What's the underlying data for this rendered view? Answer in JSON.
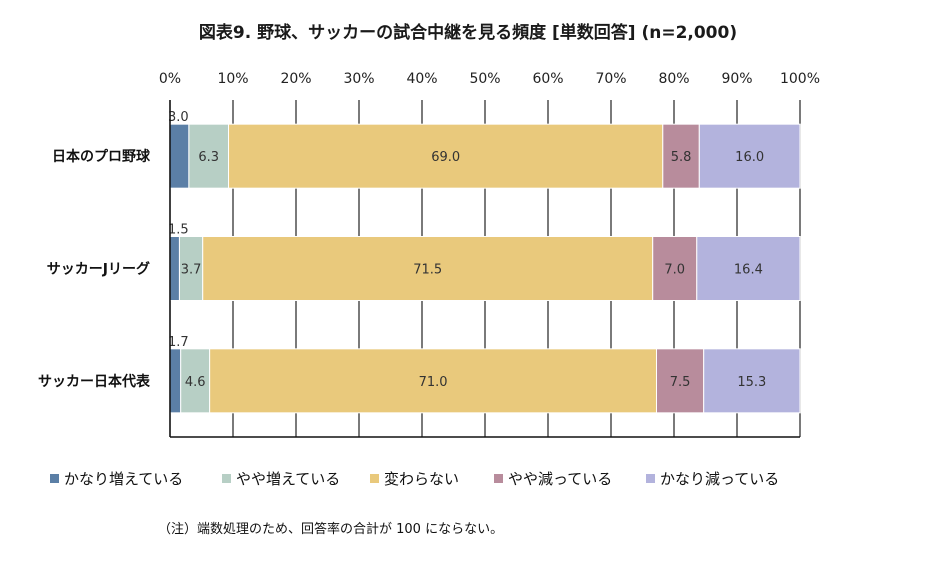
{
  "chart_data": {
    "type": "bar",
    "orientation": "horizontal",
    "stacked": "percent",
    "title": "図表9. 野球、サッカーの試合中継を見る頻度 [単数回答] (n=2,000)",
    "xlim": [
      0,
      100
    ],
    "x_ticks": [
      "0%",
      "10%",
      "20%",
      "30%",
      "40%",
      "50%",
      "60%",
      "70%",
      "80%",
      "90%",
      "100%"
    ],
    "categories": [
      "日本のプロ野球",
      "サッカーJリーグ",
      "サッカー日本代表"
    ],
    "series": [
      {
        "name": "かなり増えている",
        "color": "#5b7fa6",
        "values": [
          3.0,
          1.5,
          1.7
        ],
        "labels": [
          "3.0",
          "1.5",
          "1.7"
        ]
      },
      {
        "name": "やや増えている",
        "color": "#b7cfc5",
        "values": [
          6.3,
          3.7,
          4.6
        ],
        "labels": [
          "6.3",
          "3.7",
          "4.6"
        ]
      },
      {
        "name": "変わらない",
        "color": "#e9c97c",
        "values": [
          69.0,
          71.5,
          71.0
        ],
        "labels": [
          "69.0",
          "71.5",
          "71.0"
        ]
      },
      {
        "name": "やや減っている",
        "color": "#b88c9c",
        "values": [
          5.8,
          7.0,
          7.5
        ],
        "labels": [
          "5.8",
          "7.0",
          "7.5"
        ]
      },
      {
        "name": "かなり減っている",
        "color": "#b3b3dd",
        "values": [
          16.0,
          16.4,
          15.3
        ],
        "labels": [
          "16.0",
          "16.4",
          "15.3"
        ]
      }
    ],
    "legend_position": "bottom",
    "grid": true
  },
  "note": "（注）端数処理のため、回答率の合計が 100 にならない。"
}
